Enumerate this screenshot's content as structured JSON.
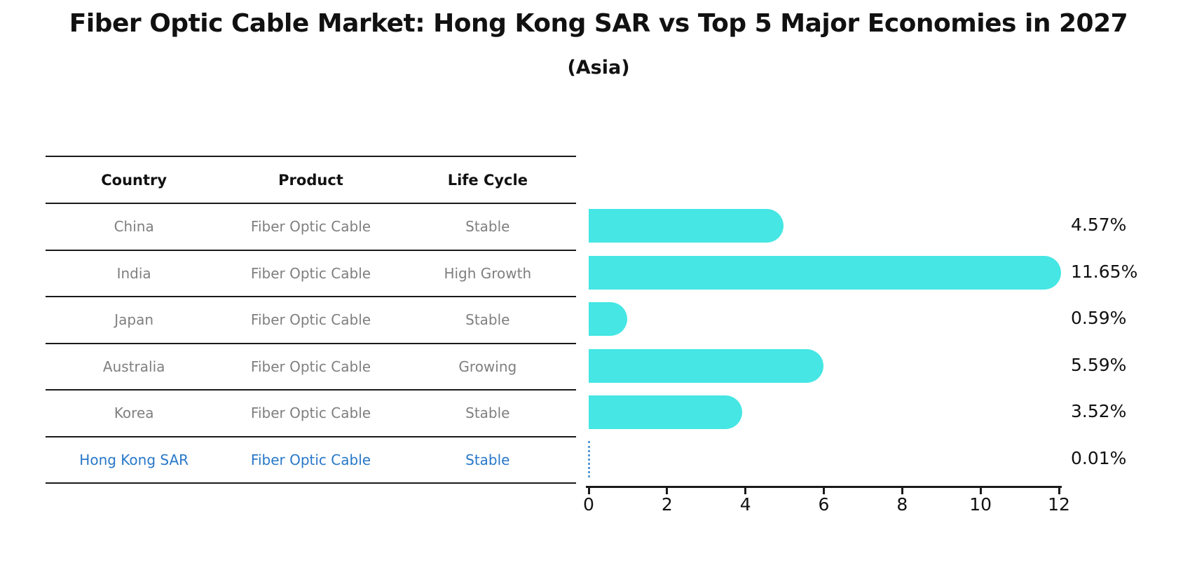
{
  "title": "Fiber Optic Cable Market: Hong Kong SAR vs Top 5 Major Economies in 2027",
  "subtitle": "(Asia)",
  "table": {
    "columns": [
      "Country",
      "Product",
      "Life Cycle"
    ],
    "rows": [
      {
        "country": "China",
        "product": "Fiber Optic Cable",
        "life_cycle": "Stable",
        "highlight": false
      },
      {
        "country": "India",
        "product": "Fiber Optic Cable",
        "life_cycle": "High Growth",
        "highlight": false
      },
      {
        "country": "Japan",
        "product": "Fiber Optic Cable",
        "life_cycle": "Stable",
        "highlight": false
      },
      {
        "country": "Australia",
        "product": "Fiber Optic Cable",
        "life_cycle": "Growing",
        "highlight": false
      },
      {
        "country": "Korea",
        "product": "Fiber Optic Cable",
        "life_cycle": "Stable",
        "highlight": false
      },
      {
        "country": "Hong Kong SAR",
        "product": "Fiber Optic Cable",
        "life_cycle": "Stable",
        "highlight": true
      }
    ]
  },
  "chart_data": {
    "type": "bar",
    "orientation": "horizontal",
    "title": "Fiber Optic Cable Market: Hong Kong SAR vs Top 5 Major Economies in 2027",
    "subtitle": "(Asia)",
    "categories": [
      "China",
      "India",
      "Japan",
      "Australia",
      "Korea",
      "Hong Kong SAR"
    ],
    "values": [
      4.57,
      11.65,
      0.59,
      5.59,
      3.52,
      0.01
    ],
    "value_labels": [
      "4.57%",
      "11.65%",
      "0.59%",
      "5.59%",
      "3.52%",
      "0.01%"
    ],
    "xlim": [
      0,
      12
    ],
    "x_ticks": [
      0,
      2,
      4,
      6,
      8,
      10,
      12
    ],
    "grid": "off",
    "legend": "none",
    "bar_color": "#45E6E4",
    "highlight_text_color": "#2878C8",
    "highlight_marker_color": "#5B9BD5",
    "highlight_index": 5
  }
}
